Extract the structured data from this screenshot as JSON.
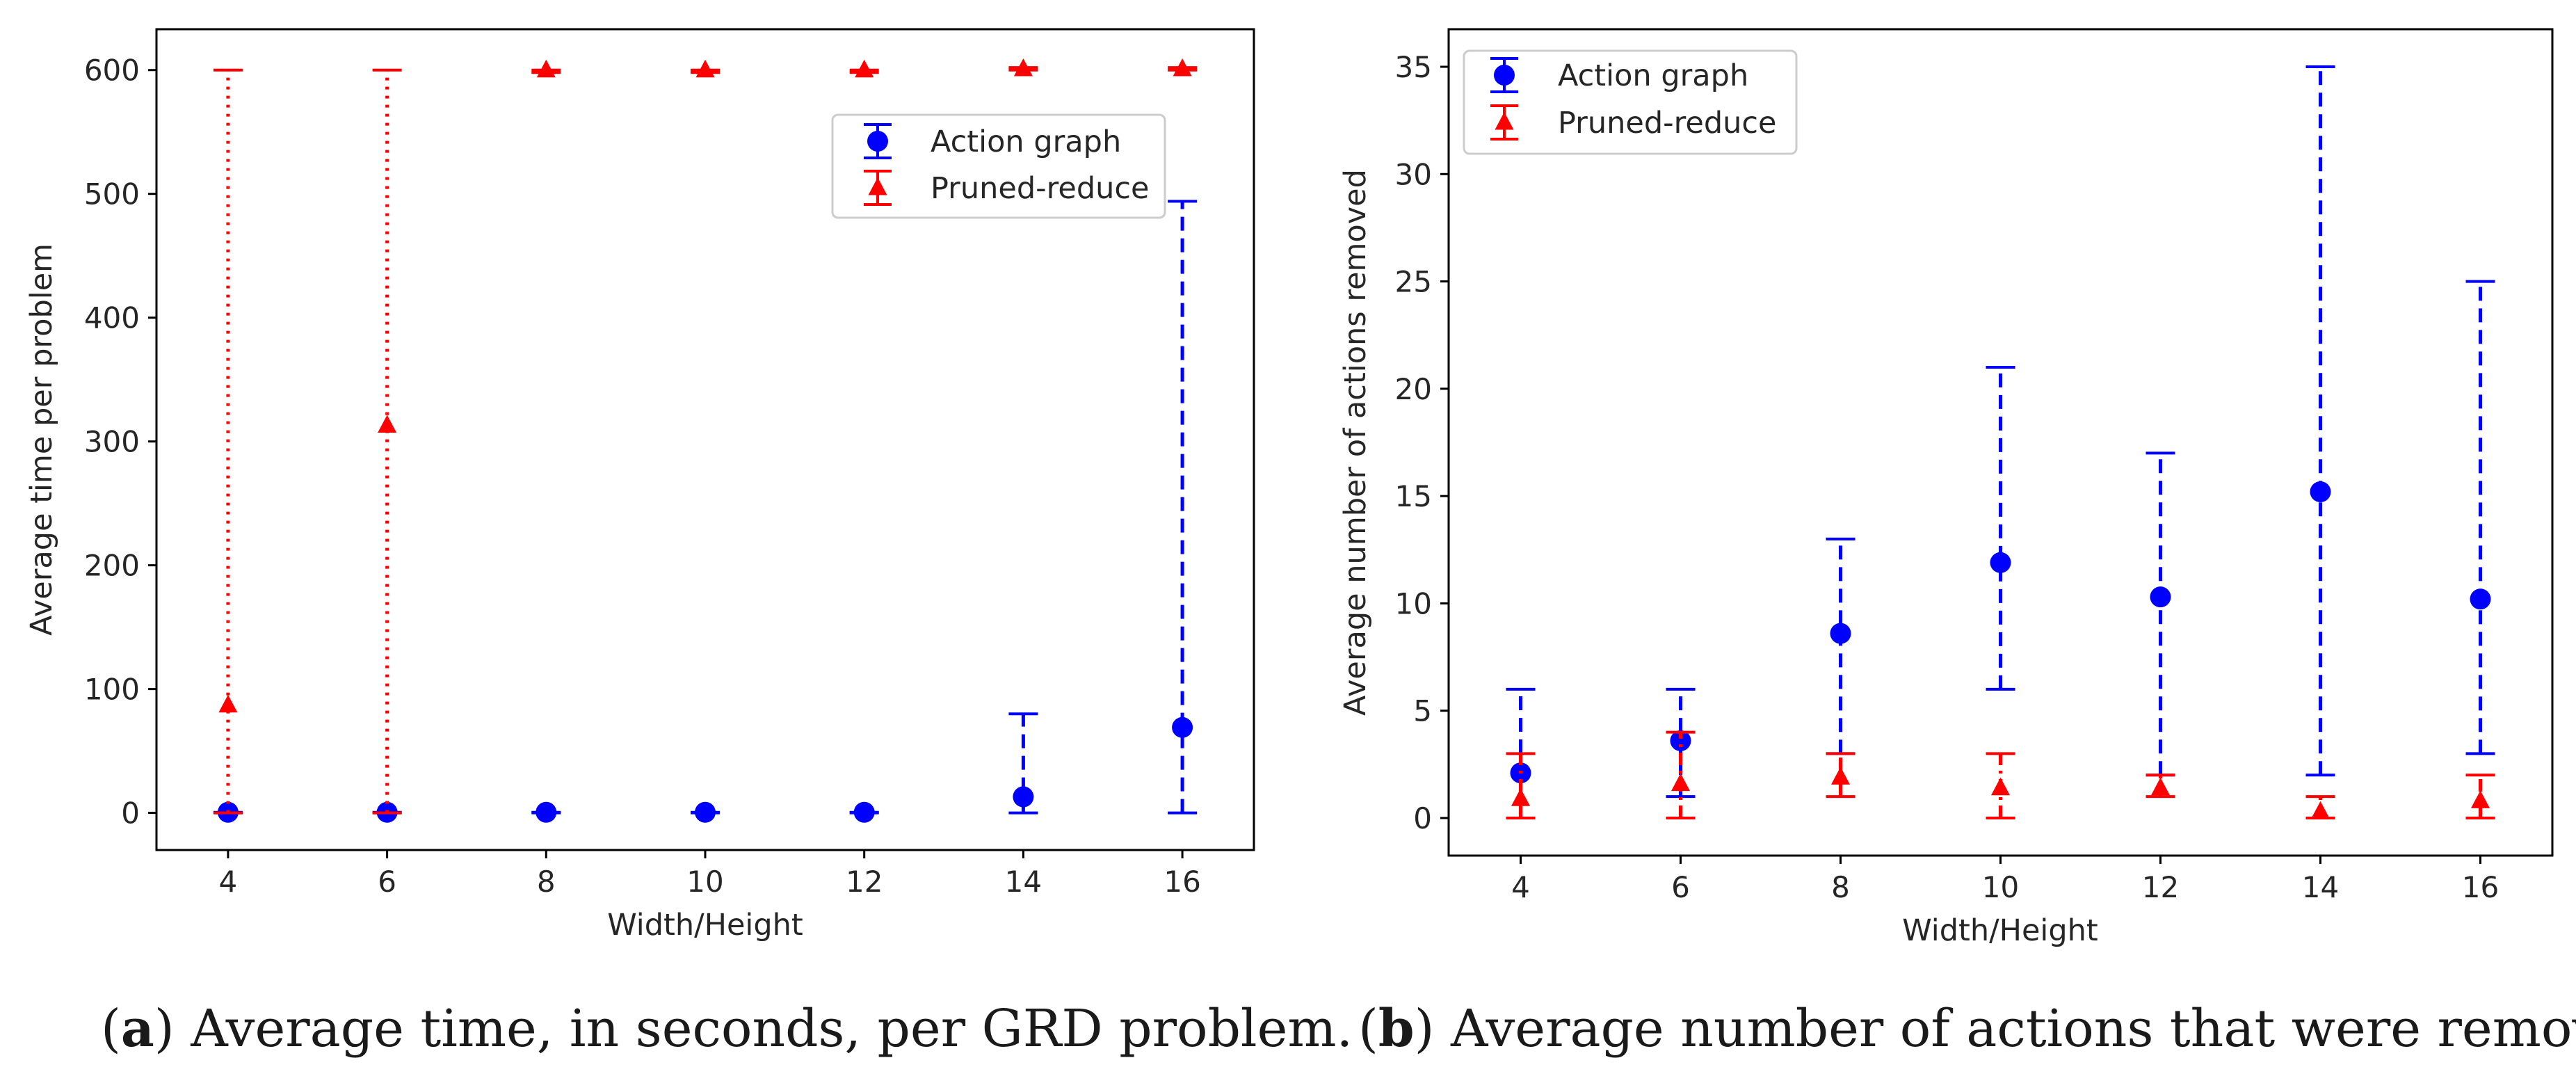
{
  "chart_data": [
    {
      "type": "scatter",
      "caption": {
        "letter": "a",
        "text": "Average time, in seconds, per GRD problem."
      },
      "xlabel": "Width/Height",
      "ylabel": "Average time per problem",
      "x_ticks": [
        4,
        6,
        8,
        10,
        12,
        14,
        16
      ],
      "xlim": [
        3.1,
        16.9
      ],
      "y_ticks": [
        0,
        100,
        200,
        300,
        400,
        500,
        600
      ],
      "ylim": [
        -30,
        633
      ],
      "legend_position": "upper right",
      "series": [
        {
          "name": "Action graph",
          "marker": "circle",
          "color": "#0000ff",
          "linestyle": "dashed",
          "points": [
            {
              "x": 4,
              "y": 0.5,
              "low": 0,
              "high": 0.5
            },
            {
              "x": 6,
              "y": 0.5,
              "low": 0,
              "high": 0.5
            },
            {
              "x": 8,
              "y": 0.5,
              "low": 0,
              "high": 0.5
            },
            {
              "x": 10,
              "y": 0.5,
              "low": 0,
              "high": 0.5
            },
            {
              "x": 12,
              "y": 0.5,
              "low": 0,
              "high": 0.5
            },
            {
              "x": 14,
              "y": 13,
              "low": 0,
              "high": 80
            },
            {
              "x": 16,
              "y": 69,
              "low": 0,
              "high": 494
            }
          ]
        },
        {
          "name": "Pruned-reduce",
          "marker": "triangle",
          "color": "#ff0000",
          "linestyle": "dotted",
          "points": [
            {
              "x": 4,
              "y": 87,
              "low": 0,
              "high": 600
            },
            {
              "x": 6,
              "y": 313,
              "low": 0,
              "high": 600
            },
            {
              "x": 8,
              "y": 600,
              "low": 598,
              "high": 600
            },
            {
              "x": 10,
              "y": 600,
              "low": 598,
              "high": 600
            },
            {
              "x": 12,
              "y": 600,
              "low": 598,
              "high": 600
            },
            {
              "x": 14,
              "y": 601,
              "low": 600,
              "high": 602
            },
            {
              "x": 16,
              "y": 601,
              "low": 600,
              "high": 602
            }
          ]
        }
      ]
    },
    {
      "type": "scatter",
      "caption": {
        "letter": "b",
        "text": "Average number of actions that were removed."
      },
      "xlabel": "Width/Height",
      "ylabel": "Average number of actions removed",
      "x_ticks": [
        4,
        6,
        8,
        10,
        12,
        14,
        16
      ],
      "xlim": [
        3.1,
        16.9
      ],
      "y_ticks": [
        0,
        5,
        10,
        15,
        20,
        25,
        30,
        35
      ],
      "ylim": [
        -1.75,
        36.75
      ],
      "legend_position": "upper left",
      "series": [
        {
          "name": "Action graph",
          "marker": "circle",
          "color": "#0000ff",
          "linestyle": "dashed",
          "points": [
            {
              "x": 4,
              "y": 2.1,
              "low": 0,
              "high": 6
            },
            {
              "x": 6,
              "y": 3.6,
              "low": 1,
              "high": 6
            },
            {
              "x": 8,
              "y": 8.6,
              "low": 3,
              "high": 13
            },
            {
              "x": 10,
              "y": 11.9,
              "low": 6,
              "high": 21
            },
            {
              "x": 12,
              "y": 10.3,
              "low": 2,
              "high": 17
            },
            {
              "x": 14,
              "y": 15.2,
              "low": 2,
              "high": 35
            },
            {
              "x": 16,
              "y": 10.2,
              "low": 3,
              "high": 25
            }
          ]
        },
        {
          "name": "Pruned-reduce",
          "marker": "triangle",
          "color": "#ff0000",
          "linestyle": "dashdot",
          "points": [
            {
              "x": 4,
              "y": 0.9,
              "low": 0,
              "high": 3
            },
            {
              "x": 6,
              "y": 1.6,
              "low": 0,
              "high": 4
            },
            {
              "x": 8,
              "y": 1.9,
              "low": 1,
              "high": 3
            },
            {
              "x": 10,
              "y": 1.4,
              "low": 0,
              "high": 3
            },
            {
              "x": 12,
              "y": 1.4,
              "low": 1,
              "high": 2
            },
            {
              "x": 14,
              "y": 0.3,
              "low": 0,
              "high": 1
            },
            {
              "x": 16,
              "y": 0.8,
              "low": 0,
              "high": 2
            }
          ]
        }
      ]
    }
  ]
}
